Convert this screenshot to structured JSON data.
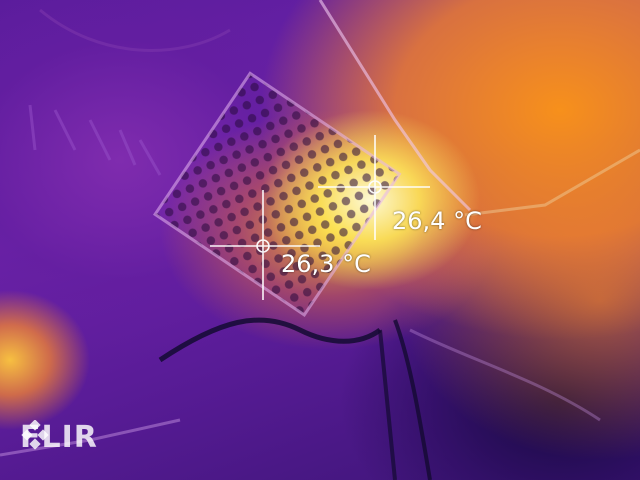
{
  "measurements": [
    {
      "label": "26,4 °C"
    },
    {
      "label": "26,3 °C"
    }
  ],
  "brand": {
    "name": "FLIR"
  },
  "colors": {
    "hot": "#fff8d0",
    "warm": "#ff9a1e",
    "mid": "#c8329a",
    "cool": "#5a1c9c",
    "cold": "#1a0a3c",
    "text": "#ffffff"
  },
  "icons": {
    "spot_marker": "crosshair-icon",
    "logo_mark": "flir-diamond-icon"
  }
}
